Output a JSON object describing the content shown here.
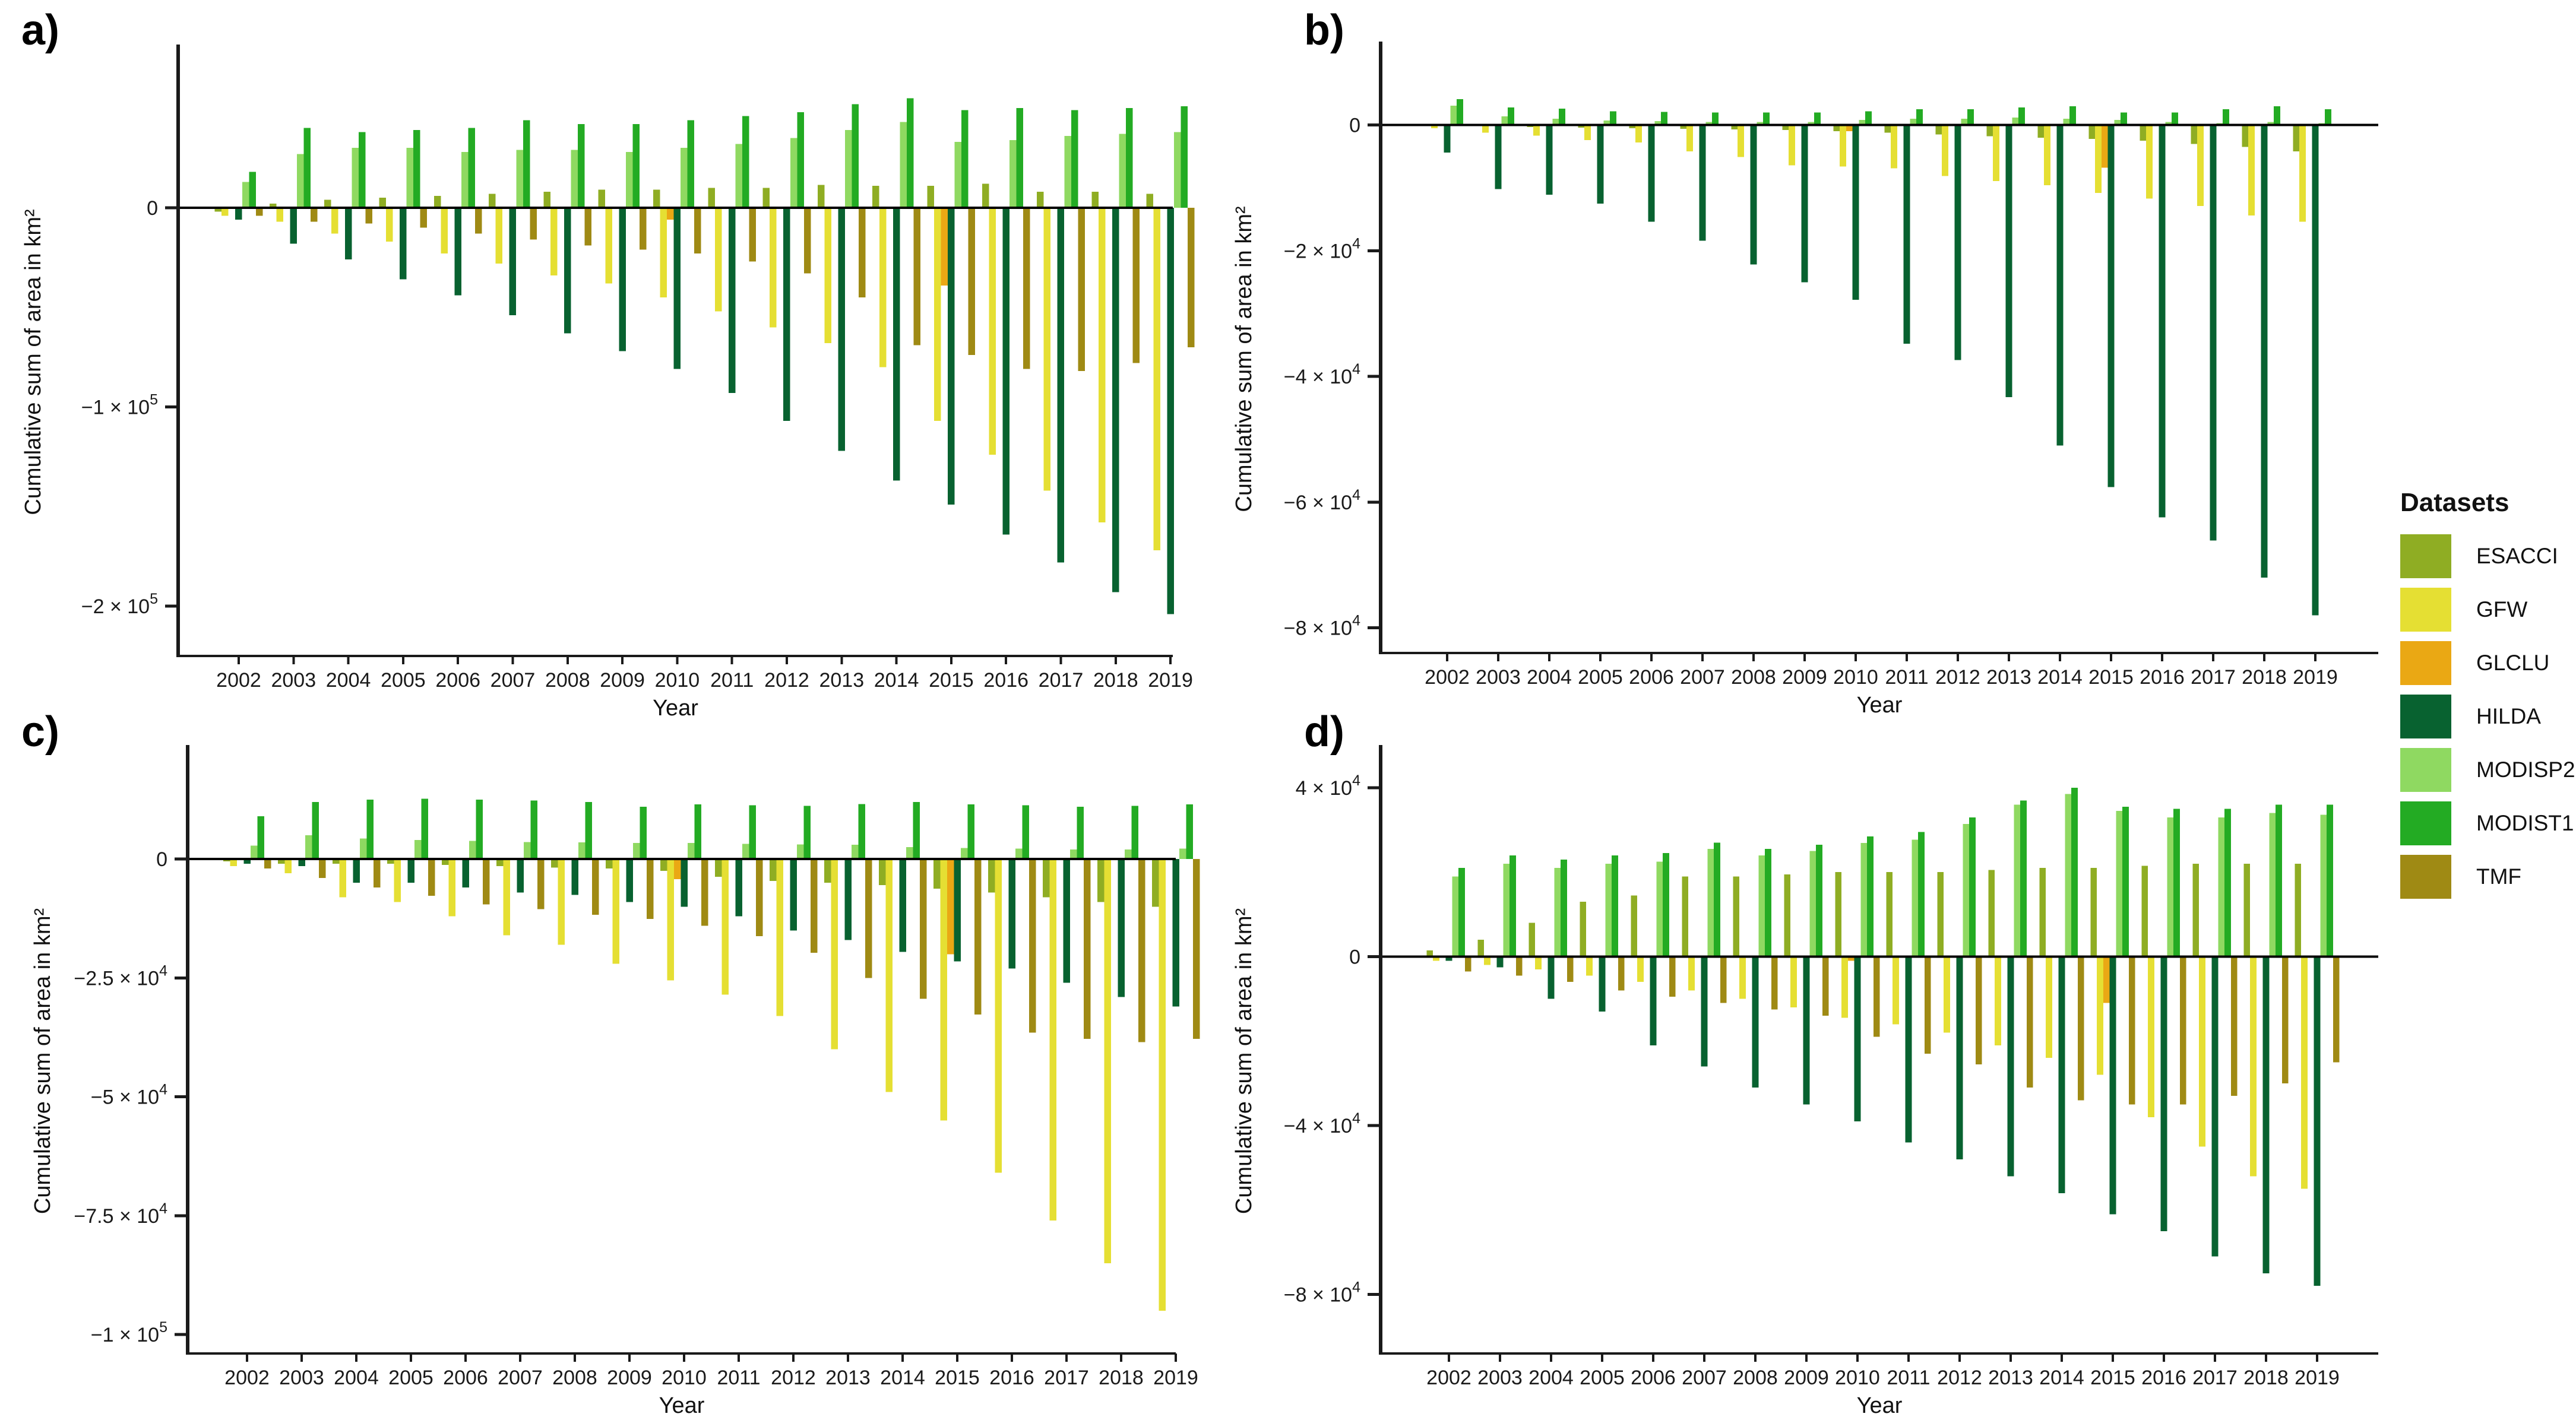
{
  "axes": {
    "y_title": "Cumulative sum of area in km²",
    "x_title": "Year"
  },
  "legend": {
    "title": "Datasets",
    "items": [
      {
        "label": "ESACCI",
        "color": "#8fad23"
      },
      {
        "label": "GFW",
        "color": "#e5df33"
      },
      {
        "label": "GLCLU",
        "color": "#eaa814"
      },
      {
        "label": "HILDA",
        "color": "#086230"
      },
      {
        "label": "MODISP2",
        "color": "#8fd961"
      },
      {
        "label": "MODIST1",
        "color": "#23ab23"
      },
      {
        "label": "TMF",
        "color": "#9f8a14"
      }
    ]
  },
  "years": [
    "2002",
    "2003",
    "2004",
    "2005",
    "2006",
    "2007",
    "2008",
    "2009",
    "2010",
    "2011",
    "2012",
    "2013",
    "2014",
    "2015",
    "2016",
    "2017",
    "2018",
    "2019"
  ],
  "chart_data": [
    {
      "panel": "a",
      "letter": "a)",
      "type": "bar",
      "xlabel": "Year",
      "ylabel": "Cumulative sum of area in km²",
      "ylim": [
        -225000,
        70000
      ],
      "yticks": [
        {
          "v": 0,
          "base": "0",
          "sup": null
        },
        {
          "v": -100000,
          "base": "−1 × 10",
          "sup": "5"
        },
        {
          "v": -200000,
          "base": "−2 × 10",
          "sup": "5"
        }
      ],
      "series": [
        {
          "name": "ESACCI",
          "values": [
            -2000,
            2000,
            4000,
            5000,
            6000,
            7000,
            8000,
            9000,
            9000,
            10000,
            10000,
            11500,
            11000,
            11000,
            12000,
            8000,
            8000,
            7000
          ]
        },
        {
          "name": "GFW",
          "values": [
            -4000,
            -7000,
            -13000,
            -17000,
            -23000,
            -28000,
            -34000,
            -38000,
            -45000,
            -52000,
            -60000,
            -68000,
            -80000,
            -107000,
            -124000,
            -142000,
            -158000,
            -172000
          ]
        },
        {
          "name": "GLCLU",
          "values": [
            0,
            0,
            0,
            0,
            0,
            0,
            0,
            0,
            -6000,
            0,
            0,
            0,
            0,
            -39000,
            0,
            0,
            0,
            0
          ]
        },
        {
          "name": "HILDA",
          "values": [
            -6000,
            -18000,
            -26000,
            -36000,
            -44000,
            -54000,
            -63000,
            -72000,
            -81000,
            -93000,
            -107000,
            -122000,
            -137000,
            -149000,
            -164000,
            -178000,
            -193000,
            -204000
          ]
        },
        {
          "name": "MODISP2",
          "values": [
            13000,
            27000,
            30000,
            30000,
            28000,
            29000,
            29000,
            28000,
            30000,
            32000,
            35000,
            39000,
            43000,
            33000,
            34000,
            36000,
            37000,
            38000
          ]
        },
        {
          "name": "MODIST1",
          "values": [
            18000,
            40000,
            38000,
            39000,
            40000,
            44000,
            42000,
            42000,
            44000,
            46000,
            48000,
            52000,
            55000,
            49000,
            50000,
            49000,
            50000,
            51000
          ]
        },
        {
          "name": "TMF",
          "values": [
            -4000,
            -7000,
            -8000,
            -10000,
            -13000,
            -16000,
            -19000,
            -21000,
            -23000,
            -27000,
            -33000,
            -45000,
            -69000,
            -74000,
            -81000,
            -82000,
            -78000,
            -70000
          ]
        }
      ]
    },
    {
      "panel": "b",
      "letter": "b)",
      "type": "bar",
      "xlabel": "Year",
      "ylabel": "Cumulative sum of area in km²",
      "ylim": [
        -84000,
        9500
      ],
      "yticks": [
        {
          "v": 0,
          "base": "0",
          "sup": null
        },
        {
          "v": -20000,
          "base": "−2 × 10",
          "sup": "4"
        },
        {
          "v": -40000,
          "base": "−4 × 10",
          "sup": "4"
        },
        {
          "v": -60000,
          "base": "−6 × 10",
          "sup": "4"
        },
        {
          "v": -80000,
          "base": "−8 × 10",
          "sup": "4"
        }
      ],
      "series": [
        {
          "name": "ESACCI",
          "values": [
            -100,
            -200,
            -300,
            -400,
            -500,
            -600,
            -700,
            -800,
            -1000,
            -1200,
            -1500,
            -1800,
            -2000,
            -2200,
            -2500,
            -3000,
            -3500,
            -4200
          ]
        },
        {
          "name": "GFW",
          "values": [
            -500,
            -1200,
            -1700,
            -2400,
            -2800,
            -4200,
            -5100,
            -6400,
            -6600,
            -6900,
            -8100,
            -8900,
            -9600,
            -10800,
            -11700,
            -12900,
            -14400,
            -15400
          ]
        },
        {
          "name": "GLCLU",
          "values": [
            0,
            0,
            0,
            0,
            0,
            0,
            0,
            0,
            -1000,
            0,
            0,
            0,
            0,
            -6800,
            0,
            0,
            0,
            0
          ]
        },
        {
          "name": "HILDA",
          "values": [
            -4400,
            -10200,
            -11100,
            -12500,
            -15400,
            -18400,
            -22200,
            -25000,
            -27800,
            -34800,
            -37400,
            -43300,
            -51000,
            -57600,
            -62400,
            -66100,
            -72000,
            -78000
          ]
        },
        {
          "name": "MODISP2",
          "values": [
            3100,
            1400,
            1000,
            700,
            600,
            500,
            500,
            500,
            800,
            1000,
            1000,
            1200,
            1000,
            800,
            500,
            300,
            500,
            300
          ]
        },
        {
          "name": "MODIST1",
          "values": [
            4100,
            2800,
            2600,
            2200,
            2100,
            2000,
            2000,
            2000,
            2200,
            2500,
            2500,
            2800,
            3000,
            2000,
            2000,
            2500,
            3000,
            2500
          ]
        },
        {
          "name": "TMF",
          "values": [
            -200,
            -200,
            -200,
            -200,
            -200,
            -200,
            -200,
            -200,
            -200,
            -200,
            -200,
            -200,
            -200,
            -200,
            -200,
            -200,
            -200,
            -200
          ]
        }
      ]
    },
    {
      "panel": "c",
      "letter": "c)",
      "type": "bar",
      "xlabel": "Year",
      "ylabel": "Cumulative sum of area in km²",
      "ylim": [
        -104000,
        19000
      ],
      "yticks": [
        {
          "v": 0,
          "base": "0",
          "sup": null
        },
        {
          "v": -25000,
          "base": "−2.5 × 10",
          "sup": "4"
        },
        {
          "v": -50000,
          "base": "−5 × 10",
          "sup": "4"
        },
        {
          "v": -75000,
          "base": "−7.5 × 10",
          "sup": "4"
        },
        {
          "v": -100000,
          "base": "−1 × 10",
          "sup": "5"
        }
      ],
      "series": [
        {
          "name": "ESACCI",
          "values": [
            -500,
            -1000,
            -1000,
            -1000,
            -1200,
            -1500,
            -1800,
            -2000,
            -2500,
            -3700,
            -4600,
            -5000,
            -5500,
            -6200,
            -7000,
            -8000,
            -9000,
            -10000
          ]
        },
        {
          "name": "GFW",
          "values": [
            -1500,
            -3000,
            -8000,
            -9000,
            -12000,
            -16000,
            -18000,
            -22000,
            -25500,
            -28500,
            -33000,
            -40000,
            -49000,
            -55000,
            -66000,
            -76000,
            -85000,
            -95000
          ]
        },
        {
          "name": "GLCLU",
          "values": [
            0,
            0,
            0,
            0,
            0,
            0,
            0,
            0,
            -4200,
            0,
            0,
            0,
            0,
            -20000,
            0,
            0,
            0,
            0
          ]
        },
        {
          "name": "HILDA",
          "values": [
            -1000,
            -1500,
            -5000,
            -5000,
            -6000,
            -7000,
            -7500,
            -9000,
            -10000,
            -12000,
            -15000,
            -17000,
            -19500,
            -21500,
            -23000,
            -26000,
            -29000,
            -31000
          ]
        },
        {
          "name": "MODISP2",
          "values": [
            2800,
            5000,
            4300,
            4000,
            3800,
            3600,
            3500,
            3400,
            3400,
            3200,
            3100,
            3000,
            2500,
            2300,
            2200,
            2000,
            2000,
            2200
          ]
        },
        {
          "name": "MODIST1",
          "values": [
            9000,
            12000,
            12500,
            12700,
            12500,
            12300,
            12000,
            11000,
            11500,
            11300,
            11200,
            11600,
            12000,
            11500,
            11300,
            11000,
            11200,
            11500
          ]
        },
        {
          "name": "TMF",
          "values": [
            -2000,
            -4000,
            -6000,
            -7700,
            -9500,
            -10500,
            -11700,
            -12600,
            -14000,
            -16200,
            -19700,
            -25000,
            -29400,
            -32700,
            -36500,
            -37800,
            -38500,
            -37800
          ]
        }
      ]
    },
    {
      "panel": "d",
      "letter": "d)",
      "type": "bar",
      "xlabel": "Year",
      "ylabel": "Cumulative sum of area in km²",
      "ylim": [
        -94000,
        44500
      ],
      "yticks": [
        {
          "v": 40000,
          "base": "4 × 10",
          "sup": "4"
        },
        {
          "v": 0,
          "base": "0",
          "sup": null
        },
        {
          "v": -40000,
          "base": "−4 × 10",
          "sup": "4"
        },
        {
          "v": -80000,
          "base": "−8 × 10",
          "sup": "4"
        }
      ],
      "series": [
        {
          "name": "ESACCI",
          "values": [
            1500,
            4000,
            8000,
            13000,
            14500,
            19000,
            19000,
            19500,
            20000,
            20000,
            20000,
            20500,
            21000,
            21000,
            21500,
            22000,
            22000,
            22000
          ]
        },
        {
          "name": "GFW",
          "values": [
            -1000,
            -2000,
            -3000,
            -4500,
            -6000,
            -8000,
            -10000,
            -12000,
            -14500,
            -16000,
            -18000,
            -21000,
            -24000,
            -28000,
            -38000,
            -45000,
            -52000,
            -55000
          ]
        },
        {
          "name": "GLCLU",
          "values": [
            0,
            0,
            0,
            0,
            0,
            0,
            0,
            0,
            -1000,
            0,
            0,
            0,
            0,
            -11000,
            0,
            0,
            0,
            0
          ]
        },
        {
          "name": "HILDA",
          "values": [
            -1000,
            -2500,
            -10000,
            -13000,
            -21000,
            -26000,
            -31000,
            -35000,
            -39000,
            -44000,
            -48000,
            -52000,
            -56000,
            -61000,
            -65000,
            -71000,
            -75000,
            -78000
          ]
        },
        {
          "name": "MODISP2",
          "values": [
            19000,
            22000,
            21000,
            22000,
            22500,
            25500,
            24000,
            25000,
            26900,
            27700,
            31400,
            36000,
            38500,
            34500,
            33000,
            33000,
            34000,
            33600
          ]
        },
        {
          "name": "MODIST1",
          "values": [
            21000,
            24000,
            23000,
            24000,
            24500,
            27000,
            25500,
            26500,
            28500,
            29500,
            33000,
            37000,
            40000,
            35500,
            35000,
            35000,
            36000,
            36000
          ]
        },
        {
          "name": "TMF",
          "values": [
            -3500,
            -4500,
            -6000,
            -8000,
            -9500,
            -11000,
            -12500,
            -14000,
            -19000,
            -23000,
            -25500,
            -31000,
            -34000,
            -35000,
            -35000,
            -33000,
            -30000,
            -25000
          ]
        }
      ]
    }
  ]
}
